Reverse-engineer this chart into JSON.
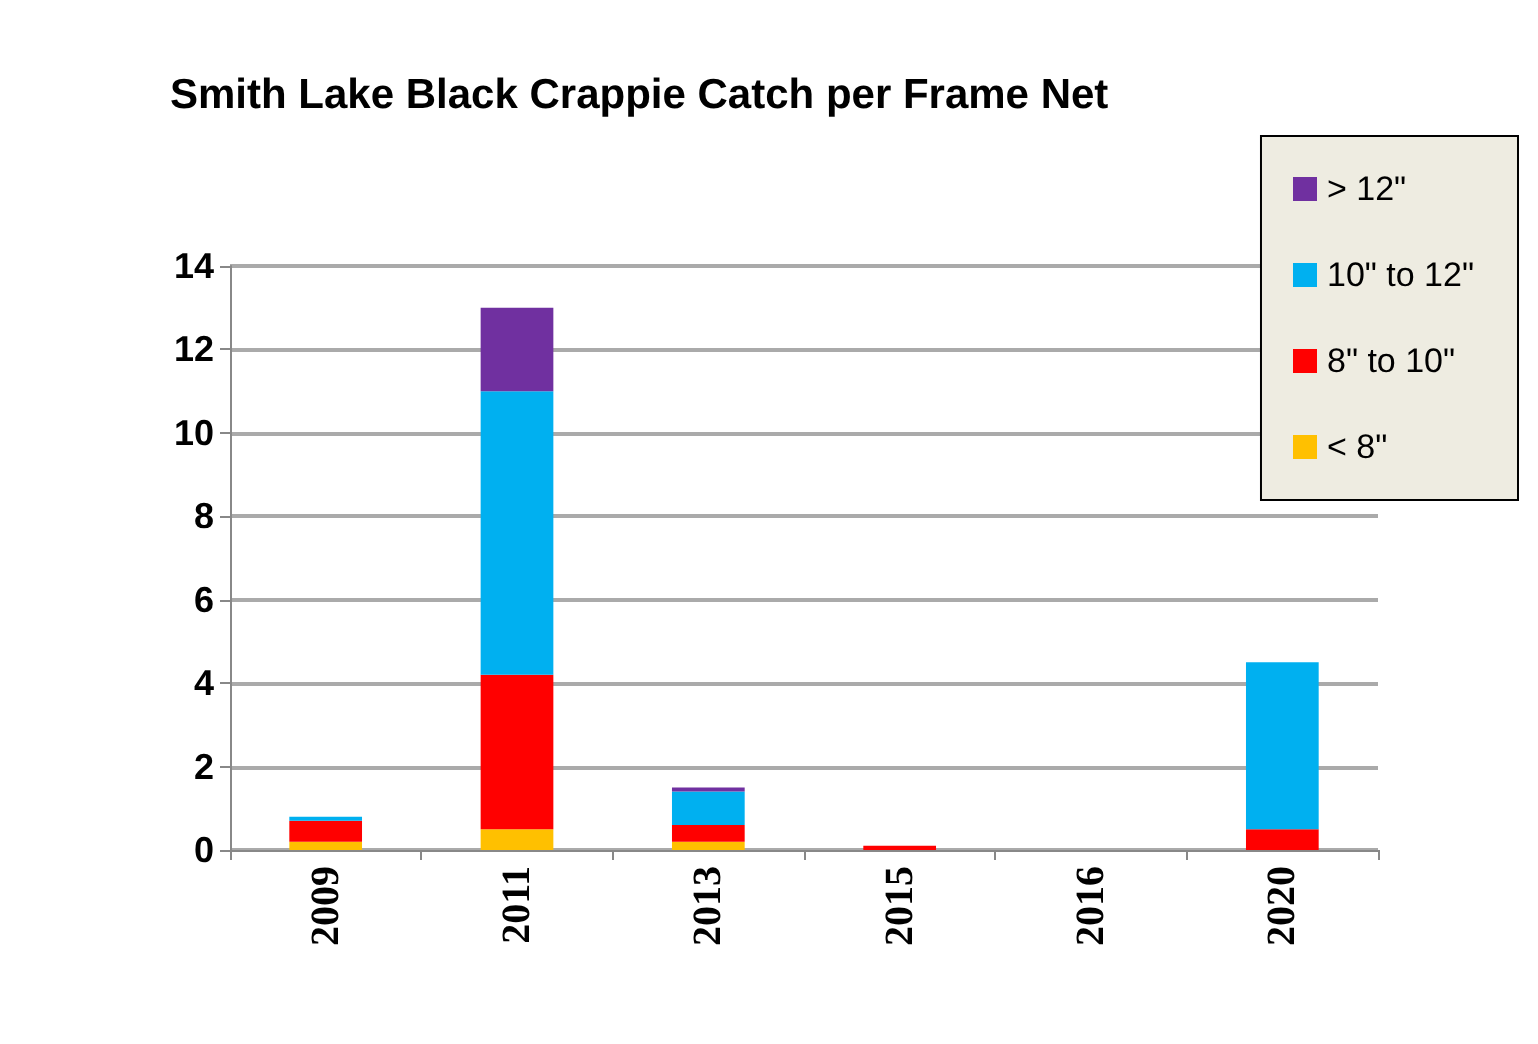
{
  "chart_data": {
    "type": "bar",
    "title": "Smith Lake Black Crappie Catch per Frame Net",
    "categories": [
      "2009",
      "2011",
      "2013",
      "2015",
      "2016",
      "2020"
    ],
    "stacked": true,
    "series": [
      {
        "name": "< 8\"",
        "color": "#ffc000",
        "values": [
          0.2,
          0.5,
          0.2,
          null,
          null,
          null
        ]
      },
      {
        "name": "8\" to 10\"",
        "color": "#ff0000",
        "values": [
          0.5,
          3.7,
          0.4,
          0.1,
          null,
          0.5
        ]
      },
      {
        "name": "10\" to 12\"",
        "color": "#00b0f0",
        "values": [
          0.1,
          6.8,
          0.8,
          null,
          null,
          4.0
        ]
      },
      {
        "name": "> 12\"",
        "color": "#7030a0",
        "values": [
          null,
          2.0,
          0.1,
          null,
          null,
          null
        ]
      }
    ],
    "ylim": [
      0,
      14
    ],
    "yticks": [
      0,
      2,
      4,
      6,
      8,
      10,
      12,
      14
    ],
    "grid": "y",
    "legend": "top right"
  }
}
